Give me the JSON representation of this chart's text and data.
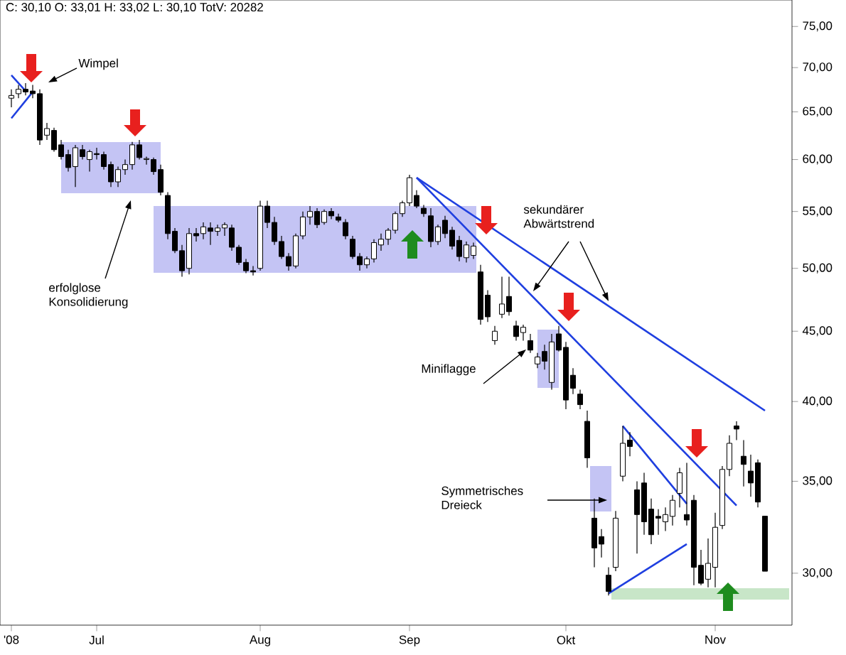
{
  "chart_data": {
    "type": "candlestick",
    "title": "C: 30,10 O: 33,01 H: 33,02 L: 30,10 TotV: 20282",
    "categories": [
      "'08",
      null,
      null,
      null,
      null,
      null,
      null,
      null,
      null,
      null,
      null,
      null,
      "Jul",
      null,
      null,
      null,
      null,
      null,
      null,
      null,
      null,
      null,
      null,
      null,
      null,
      null,
      null,
      null,
      null,
      null,
      null,
      null,
      null,
      null,
      null,
      "Aug",
      null,
      null,
      null,
      null,
      null,
      null,
      null,
      null,
      null,
      null,
      null,
      null,
      null,
      null,
      null,
      null,
      null,
      null,
      null,
      null,
      "Sep",
      null,
      null,
      null,
      null,
      null,
      null,
      null,
      null,
      null,
      null,
      null,
      null,
      null,
      null,
      null,
      null,
      null,
      null,
      null,
      null,
      null,
      "Okt",
      null,
      null,
      null,
      null,
      null,
      null,
      null,
      null,
      null,
      null,
      null,
      null,
      null,
      null,
      null,
      null,
      null,
      null,
      null,
      null,
      "Nov",
      null,
      null,
      null,
      null,
      null,
      null,
      null
    ],
    "ohlc": [
      [
        66.5,
        67.5,
        65.5,
        66.8
      ],
      [
        67,
        68,
        66.5,
        67.5
      ],
      [
        67.5,
        68.2,
        66.8,
        67.2
      ],
      [
        67.3,
        68,
        66.5,
        67
      ],
      [
        67,
        67.5,
        61.5,
        62
      ],
      [
        62.5,
        63.8,
        62,
        63.2
      ],
      [
        63,
        63.3,
        60.8,
        61
      ],
      [
        61.5,
        62,
        60,
        60.3
      ],
      [
        60.5,
        61,
        58.8,
        59.2
      ],
      [
        59.3,
        61.5,
        57.3,
        61.2
      ],
      [
        61,
        61.5,
        60,
        60.3
      ],
      [
        60,
        61,
        58.8,
        60.8
      ],
      [
        60.6,
        61.2,
        60,
        60.5
      ],
      [
        60.5,
        60.8,
        59,
        59.3
      ],
      [
        59.5,
        59.8,
        57.3,
        57.8
      ],
      [
        57.8,
        59.3,
        57.3,
        59
      ],
      [
        59,
        60,
        58.5,
        59.5
      ],
      [
        59.5,
        61.8,
        59,
        61.5
      ],
      [
        61.5,
        62,
        60,
        60.2
      ],
      [
        60,
        60.3,
        59.5,
        60.1
      ],
      [
        60,
        60.2,
        58.5,
        58.8
      ],
      [
        59,
        59.5,
        56.5,
        56.8
      ],
      [
        56.5,
        56.8,
        52.5,
        53
      ],
      [
        53.2,
        53.5,
        51.3,
        51.5
      ],
      [
        51.5,
        52,
        49.3,
        49.8
      ],
      [
        50,
        53.5,
        49.5,
        53
      ],
      [
        53,
        53.5,
        52.3,
        52.8
      ],
      [
        53,
        54,
        52.5,
        53.6
      ],
      [
        53.5,
        54,
        52,
        53.2
      ],
      [
        53.2,
        53.8,
        52.8,
        53.5
      ],
      [
        53.5,
        54,
        52.8,
        53.8
      ],
      [
        53.5,
        53.8,
        51.5,
        51.8
      ],
      [
        51.8,
        52,
        50.3,
        50.5
      ],
      [
        50.5,
        50.8,
        49.6,
        49.8
      ],
      [
        49.8,
        50.2,
        49.4,
        49.7
      ],
      [
        50,
        56,
        49.8,
        55.5
      ],
      [
        55.5,
        56,
        53.5,
        54
      ],
      [
        54,
        54.5,
        52,
        52.3
      ],
      [
        52.3,
        52.8,
        50.8,
        51
      ],
      [
        51,
        51.3,
        49.8,
        50.2
      ],
      [
        50.2,
        53,
        50,
        52.8
      ],
      [
        52.8,
        55,
        52.5,
        54.5
      ],
      [
        54.5,
        55.5,
        53.8,
        55
      ],
      [
        55,
        55.3,
        53.5,
        53.8
      ],
      [
        54,
        55.2,
        53.8,
        55
      ],
      [
        55,
        55.3,
        54.3,
        54.6
      ],
      [
        54.5,
        54.8,
        54,
        54.2
      ],
      [
        54,
        54.3,
        52.5,
        52.8
      ],
      [
        52.5,
        52.8,
        50.8,
        51
      ],
      [
        51,
        51.3,
        49.8,
        50.3
      ],
      [
        50.3,
        51,
        50,
        50.8
      ],
      [
        50.8,
        52.5,
        50.5,
        52.2
      ],
      [
        52,
        53,
        51.5,
        52.5
      ],
      [
        52.5,
        53.5,
        52,
        53.3
      ],
      [
        53.3,
        55,
        53,
        54.8
      ],
      [
        54.8,
        56,
        54.5,
        55.8
      ],
      [
        55.8,
        58.5,
        55.5,
        58.2
      ],
      [
        56.5,
        57,
        55.3,
        55.5
      ],
      [
        55.3,
        55.6,
        54.5,
        54.8
      ],
      [
        54.6,
        55.3,
        51.8,
        52.3
      ],
      [
        52.3,
        53.8,
        52,
        53.6
      ],
      [
        54.2,
        54.6,
        52.6,
        53
      ],
      [
        53.3,
        53.6,
        51.6,
        51.9
      ],
      [
        52.4,
        52.8,
        50.6,
        51
      ],
      [
        50.9,
        52.3,
        50.5,
        52
      ],
      [
        51.1,
        52.2,
        50.8,
        51.9
      ],
      [
        49.7,
        50.3,
        45.5,
        45.9
      ],
      [
        47.8,
        48.2,
        45.7,
        46.1
      ],
      [
        44.3,
        45.4,
        44,
        45
      ],
      [
        46.3,
        49.3,
        46,
        47.1
      ],
      [
        47.7,
        49.3,
        46.2,
        46.5
      ],
      [
        45.4,
        45.8,
        44.3,
        44.6
      ],
      [
        44.9,
        45.5,
        44.3,
        45.3
      ],
      [
        44.3,
        44.8,
        43.4,
        43.6
      ],
      [
        42.6,
        43.4,
        42.3,
        43.1
      ],
      [
        43.5,
        44,
        42.2,
        42.8
      ],
      [
        41.3,
        44.8,
        40.8,
        44.2
      ],
      [
        44.8,
        45.4,
        43.5,
        43.6
      ],
      [
        43.8,
        44.2,
        39.5,
        40.1
      ],
      [
        41.8,
        42.3,
        40.5,
        40.9
      ],
      [
        40.5,
        40.8,
        39.5,
        39.8
      ],
      [
        38.7,
        39.4,
        35.8,
        36.4
      ],
      [
        32.9,
        34,
        30.3,
        31.3
      ],
      [
        31.9,
        32.3,
        30.8,
        31.5
      ],
      [
        29.9,
        30.3,
        28.9,
        29.1
      ],
      [
        30.3,
        33.3,
        30.1,
        32.9
      ],
      [
        35.3,
        38.4,
        35,
        37.3
      ],
      [
        37.5,
        38,
        36.5,
        37.1
      ],
      [
        34.5,
        35,
        31,
        33.1
      ],
      [
        34.9,
        35.5,
        32,
        32.7
      ],
      [
        33.4,
        34,
        31.5,
        32
      ],
      [
        33,
        33.4,
        32,
        32.9
      ],
      [
        32.7,
        33.5,
        32.2,
        33.1
      ],
      [
        33,
        34.2,
        32.5,
        33.9
      ],
      [
        34.3,
        35.8,
        33.5,
        35.5
      ],
      [
        33.1,
        36.1,
        32.5,
        32.8
      ],
      [
        33.9,
        34.2,
        29.4,
        30.3
      ],
      [
        30.4,
        31.2,
        29.4,
        29.5
      ],
      [
        29.7,
        31.8,
        29.3,
        30.5
      ],
      [
        30.3,
        33.2,
        29.3,
        32.4
      ],
      [
        32.5,
        35.9,
        32.3,
        35.7
      ],
      [
        35.7,
        37.8,
        35.3,
        37.3
      ],
      [
        38.4,
        38.7,
        37.5,
        38.2
      ],
      [
        36.5,
        37.5,
        34.7,
        36
      ],
      [
        35.6,
        36.6,
        34.1,
        34.9
      ],
      [
        36.1,
        36.3,
        33.5,
        33.8
      ],
      [
        33.01,
        33.02,
        30.1,
        30.1
      ]
    ],
    "series": [
      {
        "type": "line",
        "color": "#1f3fe0",
        "values": [
          69.1,
          null,
          67.3,
          null,
          null,
          null,
          null,
          null,
          null,
          null,
          null,
          null,
          null,
          null,
          null,
          null,
          null,
          null,
          null,
          null,
          null,
          null,
          null,
          null,
          null,
          null,
          null,
          null,
          null,
          null,
          null,
          null,
          null,
          null,
          null,
          null,
          null,
          null,
          null,
          null,
          null,
          null,
          null,
          null,
          null,
          null,
          null,
          null,
          null,
          null,
          null,
          null,
          null,
          null,
          null,
          null,
          null,
          null,
          null,
          null,
          null,
          null,
          null,
          null,
          null,
          null,
          null,
          null,
          null,
          null,
          null,
          null,
          null,
          null,
          null,
          null,
          null,
          null,
          null,
          null,
          null,
          null,
          null,
          null,
          null,
          null,
          null,
          null,
          null,
          null,
          null,
          null,
          null,
          null,
          null,
          null,
          null,
          null,
          null,
          null,
          null,
          null,
          null,
          null,
          null,
          null,
          null
        ]
      },
      {
        "type": "line",
        "color": "#1f3fe0",
        "values": [
          64.3,
          null,
          null,
          67.2,
          null,
          null,
          null,
          null,
          null,
          null,
          null,
          null,
          null,
          null,
          null,
          null,
          null,
          null,
          null,
          null,
          null,
          null,
          null,
          null,
          null,
          null,
          null,
          null,
          null,
          null,
          null,
          null,
          null,
          null,
          null,
          null,
          null,
          null,
          null,
          null,
          null,
          null,
          null,
          null,
          null,
          null,
          null,
          null,
          null,
          null,
          null,
          null,
          null,
          null,
          null,
          null,
          null,
          null,
          null,
          null,
          null,
          null,
          null,
          null,
          null,
          null,
          null,
          null,
          null,
          null,
          null,
          null,
          null,
          null,
          null,
          null,
          null,
          null,
          null,
          null,
          null,
          null,
          null,
          null,
          null,
          null,
          null,
          null,
          null,
          null,
          null,
          null,
          null,
          null,
          null,
          null,
          null,
          null,
          null,
          null,
          null,
          null,
          null,
          null,
          null,
          null,
          null
        ]
      },
      {
        "type": "line",
        "color": "#1f3fe0",
        "values": [
          null,
          null,
          null,
          null,
          null,
          null,
          null,
          null,
          null,
          null,
          null,
          null,
          null,
          null,
          null,
          null,
          null,
          null,
          null,
          null,
          null,
          null,
          null,
          null,
          null,
          null,
          null,
          null,
          null,
          null,
          null,
          null,
          null,
          null,
          null,
          null,
          null,
          null,
          null,
          null,
          null,
          null,
          null,
          null,
          null,
          null,
          null,
          null,
          null,
          null,
          null,
          null,
          null,
          null,
          null,
          null,
          null,
          58.2,
          null,
          null,
          null,
          null,
          null,
          null,
          null,
          null,
          null,
          null,
          null,
          null,
          null,
          null,
          null,
          null,
          null,
          null,
          null,
          null,
          null,
          null,
          null,
          null,
          null,
          null,
          null,
          null,
          null,
          null,
          null,
          null,
          null,
          null,
          null,
          null,
          null,
          null,
          null,
          null,
          null,
          null,
          null,
          null,
          null,
          null,
          null,
          null,
          39.4
        ]
      },
      {
        "type": "line",
        "color": "#1f3fe0",
        "values": [
          null,
          null,
          null,
          null,
          null,
          null,
          null,
          null,
          null,
          null,
          null,
          null,
          null,
          null,
          null,
          null,
          null,
          null,
          null,
          null,
          null,
          null,
          null,
          null,
          null,
          null,
          null,
          null,
          null,
          null,
          null,
          null,
          null,
          null,
          null,
          null,
          null,
          null,
          null,
          null,
          null,
          null,
          null,
          null,
          null,
          null,
          null,
          null,
          null,
          null,
          null,
          null,
          null,
          null,
          null,
          null,
          null,
          58.2,
          null,
          null,
          null,
          null,
          null,
          null,
          null,
          null,
          null,
          null,
          null,
          null,
          null,
          null,
          null,
          null,
          null,
          null,
          null,
          null,
          null,
          null,
          null,
          null,
          null,
          null,
          null,
          null,
          null,
          null,
          null,
          null,
          null,
          null,
          null,
          null,
          null,
          null,
          null,
          null,
          null,
          null,
          null,
          null,
          33.6,
          null,
          null,
          null,
          null
        ]
      },
      {
        "type": "line",
        "color": "#1f3fe0",
        "values": [
          null,
          null,
          null,
          null,
          null,
          null,
          null,
          null,
          null,
          null,
          null,
          null,
          null,
          null,
          null,
          null,
          null,
          null,
          null,
          null,
          null,
          null,
          null,
          null,
          null,
          null,
          null,
          null,
          null,
          null,
          null,
          null,
          null,
          null,
          null,
          null,
          null,
          null,
          null,
          null,
          null,
          null,
          null,
          null,
          null,
          null,
          null,
          null,
          null,
          null,
          null,
          null,
          null,
          null,
          null,
          null,
          null,
          null,
          null,
          null,
          null,
          null,
          null,
          null,
          null,
          null,
          null,
          null,
          null,
          null,
          null,
          null,
          null,
          null,
          null,
          null,
          null,
          null,
          null,
          null,
          null,
          null,
          null,
          null,
          null,
          null,
          38.4,
          null,
          null,
          null,
          null,
          null,
          null,
          null,
          null,
          33.7,
          null,
          null,
          null,
          null,
          null,
          null,
          null,
          null,
          null,
          null,
          null
        ]
      },
      {
        "type": "line",
        "color": "#1f3fe0",
        "values": [
          null,
          null,
          null,
          null,
          null,
          null,
          null,
          null,
          null,
          null,
          null,
          null,
          null,
          null,
          null,
          null,
          null,
          null,
          null,
          null,
          null,
          null,
          null,
          null,
          null,
          null,
          null,
          null,
          null,
          null,
          null,
          null,
          null,
          null,
          null,
          null,
          null,
          null,
          null,
          null,
          null,
          null,
          null,
          null,
          null,
          null,
          null,
          null,
          null,
          null,
          null,
          null,
          null,
          null,
          null,
          null,
          null,
          null,
          null,
          null,
          null,
          null,
          null,
          null,
          null,
          null,
          null,
          null,
          null,
          null,
          null,
          null,
          null,
          null,
          null,
          null,
          null,
          null,
          null,
          null,
          null,
          null,
          null,
          null,
          29,
          null,
          null,
          null,
          null,
          null,
          null,
          null,
          null,
          null,
          null,
          31.5,
          null,
          null,
          null,
          null,
          null,
          null,
          null,
          null,
          null,
          null,
          null
        ]
      }
    ],
    "ylim": [
      27.5,
      78.4
    ],
    "yticks": [
      {
        "value": 30,
        "label": "30,00"
      },
      {
        "value": 35,
        "label": "35,00"
      },
      {
        "value": 40,
        "label": "40,00"
      },
      {
        "value": 45,
        "label": "45,00"
      },
      {
        "value": 50,
        "label": "50,00"
      },
      {
        "value": 55,
        "label": "55,00"
      },
      {
        "value": 60,
        "label": "60,00"
      },
      {
        "value": 65,
        "label": "65,00"
      },
      {
        "value": 70,
        "label": "70,00"
      },
      {
        "value": 75,
        "label": "75,00"
      }
    ],
    "log": "y",
    "annotations": [
      "Wimpel",
      "erfolglose Konsolidierung",
      "sekundärer Abwärtstrend",
      "Miniflagge",
      "Symmetrisches Dreieck"
    ]
  }
}
